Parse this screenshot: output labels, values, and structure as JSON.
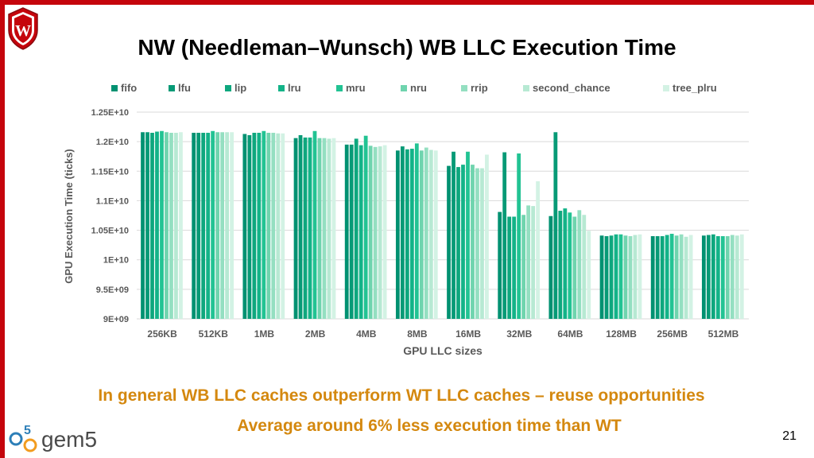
{
  "slide": {
    "title": "NW (Needleman–Wunsch) WB LLC Execution Time",
    "note_line1": "In general WB LLC caches outperform WT LLC caches – reuse opportunities",
    "note_line2": "Average around 6% less execution time than WT",
    "page_number": "21",
    "logo_text": "gem5",
    "crest_letter": "W",
    "accent_color": "#c5050c",
    "note_color": "#d4880f"
  },
  "chart_data": {
    "type": "bar",
    "title": "",
    "xlabel": "GPU LLC sizes",
    "ylabel": "GPU Execution Time (ticks)",
    "ylim": [
      9000000000,
      12500000000
    ],
    "yticks": [
      9000000000,
      9500000000,
      10000000000,
      10500000000,
      11000000000,
      11500000000,
      12000000000,
      12500000000
    ],
    "ytick_labels": [
      "9E+09",
      "9.5E+09",
      "1E+10",
      "1.05E+10",
      "1.1E+10",
      "1.15E+10",
      "1.2E+10",
      "1.25E+10"
    ],
    "grid": true,
    "legend": "top",
    "categories": [
      "256KB",
      "512KB",
      "1MB",
      "2MB",
      "4MB",
      "8MB",
      "16MB",
      "32MB",
      "64MB",
      "128MB",
      "256MB",
      "512MB"
    ],
    "series": [
      {
        "name": "fifo",
        "color": "#009171",
        "values": [
          12160000000,
          12150000000,
          12130000000,
          12060000000,
          11950000000,
          11850000000,
          11590000000,
          10810000000,
          10740000000,
          10410000000,
          10400000000,
          10410000000
        ]
      },
      {
        "name": "lfu",
        "color": "#079a76",
        "values": [
          12160000000,
          12150000000,
          12110000000,
          12110000000,
          11950000000,
          11920000000,
          11830000000,
          11820000000,
          12160000000,
          10400000000,
          10400000000,
          10420000000
        ]
      },
      {
        "name": "lip",
        "color": "#0ea77e",
        "values": [
          12150000000,
          12150000000,
          12150000000,
          12070000000,
          12050000000,
          11870000000,
          11570000000,
          10730000000,
          10830000000,
          10410000000,
          10400000000,
          10430000000
        ]
      },
      {
        "name": "lru",
        "color": "#13b388",
        "values": [
          12170000000,
          12150000000,
          12150000000,
          12070000000,
          11940000000,
          11880000000,
          11610000000,
          10730000000,
          10870000000,
          10430000000,
          10420000000,
          10400000000
        ]
      },
      {
        "name": "mru",
        "color": "#22c393",
        "values": [
          12180000000,
          12180000000,
          12180000000,
          12180000000,
          12100000000,
          11970000000,
          11830000000,
          11800000000,
          10800000000,
          10430000000,
          10440000000,
          10400000000
        ]
      },
      {
        "name": "nru",
        "color": "#6fd4ae",
        "values": [
          12160000000,
          12160000000,
          12150000000,
          12060000000,
          11930000000,
          11850000000,
          11610000000,
          10760000000,
          10730000000,
          10410000000,
          10410000000,
          10400000000
        ]
      },
      {
        "name": "rrip",
        "color": "#94dfc1",
        "values": [
          12150000000,
          12160000000,
          12150000000,
          12060000000,
          11910000000,
          11900000000,
          11550000000,
          10920000000,
          10840000000,
          10400000000,
          10430000000,
          10420000000
        ]
      },
      {
        "name": "second_chance",
        "color": "#b7e9d3",
        "values": [
          12150000000,
          12160000000,
          12140000000,
          12050000000,
          11920000000,
          11860000000,
          11550000000,
          10910000000,
          10760000000,
          10420000000,
          10390000000,
          10410000000
        ]
      },
      {
        "name": "tree_plru",
        "color": "#d3f2e4",
        "values": [
          12160000000,
          12160000000,
          12140000000,
          12060000000,
          11940000000,
          11850000000,
          11780000000,
          11330000000,
          10490000000,
          10430000000,
          10420000000,
          10430000000
        ]
      }
    ]
  }
}
